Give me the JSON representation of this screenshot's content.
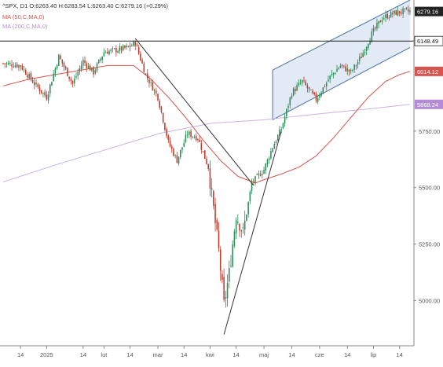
{
  "header": {
    "ohlc": "^SPX, D1  O:6263.40  H:6283.54  L:6263.40  C:6279.16 (+0.29%)",
    "ma50": "MA (50,C,MA,0)",
    "ma200": "MA (200,C,MA,0)"
  },
  "chart_data": {
    "type": "candlestick",
    "symbol": "^SPX",
    "timeframe": "D1",
    "ylim": [
      4800,
      6330
    ],
    "y_ticks": [
      5000,
      5250,
      5500,
      5750
    ],
    "y_tick_labels": [
      "5000.00",
      "5250.00",
      "5500.00",
      "5750.00"
    ],
    "x_tick_labels": [
      "14",
      "2025",
      "14",
      "lut",
      "14",
      "mar",
      "14",
      "kwi",
      "14",
      "maj",
      "14",
      "cze",
      "14",
      "lip",
      "14"
    ],
    "x_tick_index": [
      10,
      25,
      46,
      58,
      73,
      89,
      104,
      119,
      134,
      150,
      166,
      182,
      198,
      213,
      228
    ],
    "n_bars": 235,
    "price_labels": [
      {
        "text": "6279.16",
        "value": 6279.16,
        "color": "#222222",
        "text_color": "#ffffff"
      },
      {
        "text": "6148.49",
        "value": 6148.49,
        "color": "#ffffff",
        "text_color": "#222222"
      },
      {
        "text": "6014.12",
        "value": 6014.12,
        "color": "#d9534f",
        "text_color": "#ffffff"
      },
      {
        "text": "5868.24",
        "value": 5868.24,
        "color": "#b58ad6",
        "text_color": "#ffffff"
      }
    ],
    "horizontal_line": {
      "value": 6148.49
    },
    "colors": {
      "up": "#2e8b57",
      "down": "#c0392b",
      "ma50": "#d9534f",
      "ma200": "#c9b2e6",
      "channel": "#4a6fa5",
      "channel_fill": "#dbe6f3",
      "trendline": "#333333"
    },
    "close_anchors": [
      [
        0,
        6050
      ],
      [
        10,
        6040
      ],
      [
        18,
        5960
      ],
      [
        25,
        5900
      ],
      [
        32,
        6080
      ],
      [
        40,
        5960
      ],
      [
        46,
        6060
      ],
      [
        52,
        6010
      ],
      [
        58,
        6100
      ],
      [
        66,
        6110
      ],
      [
        72,
        6120
      ],
      [
        76,
        6140
      ],
      [
        82,
        6000
      ],
      [
        89,
        5900
      ],
      [
        95,
        5700
      ],
      [
        100,
        5620
      ],
      [
        106,
        5740
      ],
      [
        112,
        5720
      ],
      [
        118,
        5590
      ],
      [
        124,
        5220
      ],
      [
        127,
        4980
      ],
      [
        130,
        5120
      ],
      [
        134,
        5380
      ],
      [
        138,
        5300
      ],
      [
        143,
        5520
      ],
      [
        150,
        5580
      ],
      [
        155,
        5680
      ],
      [
        160,
        5760
      ],
      [
        166,
        5920
      ],
      [
        172,
        5970
      ],
      [
        180,
        5890
      ],
      [
        188,
        5990
      ],
      [
        194,
        6040
      ],
      [
        200,
        6010
      ],
      [
        206,
        6080
      ],
      [
        212,
        6180
      ],
      [
        218,
        6250
      ],
      [
        224,
        6270
      ],
      [
        230,
        6280
      ],
      [
        234,
        6279
      ]
    ],
    "ma50_anchors": [
      [
        0,
        5950
      ],
      [
        15,
        5980
      ],
      [
        30,
        6000
      ],
      [
        45,
        6020
      ],
      [
        60,
        6040
      ],
      [
        75,
        6040
      ],
      [
        85,
        5980
      ],
      [
        95,
        5900
      ],
      [
        105,
        5810
      ],
      [
        115,
        5710
      ],
      [
        125,
        5620
      ],
      [
        135,
        5550
      ],
      [
        145,
        5520
      ],
      [
        150,
        5535
      ],
      [
        160,
        5560
      ],
      [
        170,
        5590
      ],
      [
        180,
        5640
      ],
      [
        190,
        5720
      ],
      [
        200,
        5810
      ],
      [
        210,
        5900
      ],
      [
        220,
        5970
      ],
      [
        228,
        6000
      ],
      [
        234,
        6014
      ]
    ],
    "ma200_anchors": [
      [
        0,
        5525
      ],
      [
        30,
        5600
      ],
      [
        60,
        5670
      ],
      [
        90,
        5740
      ],
      [
        120,
        5785
      ],
      [
        150,
        5800
      ],
      [
        180,
        5825
      ],
      [
        210,
        5848
      ],
      [
        234,
        5868
      ]
    ],
    "trendlines": [
      {
        "from": [
          76,
          6160
        ],
        "to": [
          144,
          5510
        ]
      },
      {
        "from": [
          127,
          4850
        ],
        "to": [
          160,
          5750
        ]
      }
    ],
    "channel": {
      "upper": {
        "from": [
          155,
          6020
        ],
        "to": [
          234,
          6330
        ]
      },
      "lower": {
        "from": [
          155,
          5800
        ],
        "to": [
          234,
          6120
        ]
      }
    }
  }
}
